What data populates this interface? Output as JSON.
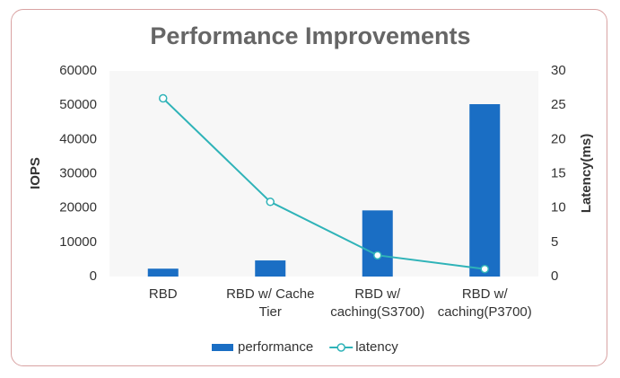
{
  "chart_data": {
    "type": "bar",
    "title": "Performance Improvements",
    "categories": [
      "RBD",
      "RBD w/ Cache Tier",
      "RBD w/ caching(S3700)",
      "RBD w/ caching(P3700)"
    ],
    "series": [
      {
        "name": "performance",
        "type": "bar",
        "color": "#1a6ec4",
        "values": [
          2300,
          4700,
          19300,
          50300
        ]
      },
      {
        "name": "latency",
        "type": "line",
        "axis": "y2",
        "color": "#2fb3b8",
        "values": [
          26,
          10.9,
          3.1,
          1.1
        ]
      }
    ],
    "ylabel": "IOPS",
    "y2label": "Latency(ms)",
    "ylim": [
      0,
      60000
    ],
    "yticks": [
      0,
      10000,
      20000,
      30000,
      40000,
      50000,
      60000
    ],
    "y2lim": [
      0,
      30
    ],
    "y2ticks": [
      0,
      5,
      10,
      15,
      20,
      25,
      30
    ],
    "grid": false,
    "legend": "bottom"
  }
}
